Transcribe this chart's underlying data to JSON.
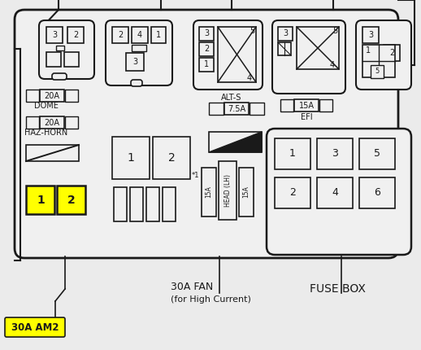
{
  "bg_color": "#f0f0f0",
  "box_color": "#1a1a1a",
  "yellow_color": "#ffff00",
  "label_30a_am2": "30A AM2",
  "label_fan": "30A FAN",
  "label_fan_sub": "(for High Current)",
  "label_fusebox": "FUSE BOX",
  "label_dome": "20A",
  "label_dome2": "DOME",
  "label_hazhorn": "20A",
  "label_hazhorn2": "HAZ-HORN",
  "label_alts": "ALT-S",
  "label_alts_val": "7.5A",
  "label_efi": "15A",
  "label_efi_name": "EFI",
  "label_head_lh": "HEAD (LH)",
  "label_15a_left": "15A",
  "label_15a_right": "15A",
  "label_1star": "*1"
}
